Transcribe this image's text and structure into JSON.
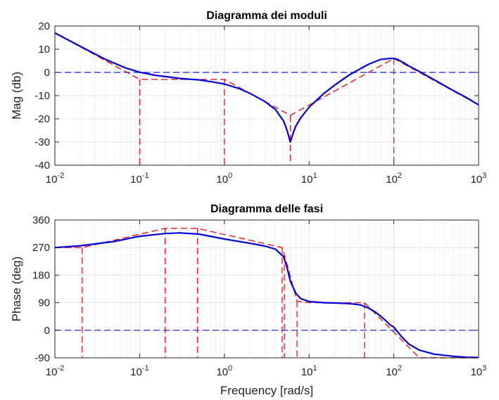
{
  "chart_data": [
    {
      "type": "line",
      "title": "Diagramma dei moduli",
      "xlabel": "",
      "ylabel": "Mag (db)",
      "xscale": "log",
      "xlim": [
        0.01,
        1000
      ],
      "ylim": [
        -40,
        20
      ],
      "x_tick_labels": [
        {
          "base": "10",
          "exp": "-2"
        },
        {
          "base": "10",
          "exp": "-1"
        },
        {
          "base": "10",
          "exp": "0"
        },
        {
          "base": "10",
          "exp": "1"
        },
        {
          "base": "10",
          "exp": "2"
        },
        {
          "base": "10",
          "exp": "3"
        }
      ],
      "y_ticks": [
        20,
        10,
        0,
        -10,
        -20,
        -30,
        -40
      ],
      "grid": true,
      "colors": {
        "exact": "#0000dd",
        "asymptotic": "#e8141e",
        "zero_line": "#1a1acc"
      },
      "series": [
        {
          "style": "solid",
          "x": [
            0.01,
            0.02,
            0.04,
            0.07,
            0.1,
            0.15,
            0.2,
            0.3,
            0.5,
            0.7,
            1,
            1.5,
            2,
            3,
            4,
            5,
            5.5,
            6,
            6.5,
            7,
            8,
            10,
            15,
            20,
            30,
            50,
            70,
            90,
            100,
            110,
            130,
            150,
            200,
            300,
            500,
            700,
            1000
          ],
          "y": [
            17,
            11.2,
            5.5,
            1.8,
            0.1,
            -1.2,
            -1.8,
            -2.6,
            -3.2,
            -4,
            -5,
            -7,
            -9,
            -12.5,
            -16,
            -21,
            -25,
            -30,
            -26,
            -23,
            -19.5,
            -15,
            -9,
            -5.5,
            -1,
            3.5,
            5.6,
            6,
            6,
            5.6,
            4.2,
            2.8,
            0.4,
            -3.2,
            -7.8,
            -10.6,
            -14
          ]
        },
        {
          "style": "dashed",
          "x": [
            0.01,
            0.1,
            1,
            6,
            100,
            1000
          ],
          "y": [
            17,
            -3,
            -3,
            -18.5,
            6,
            -14
          ]
        }
      ],
      "asymptote_drops": [
        0.1,
        1,
        6,
        100
      ],
      "reference_line": {
        "y": 0
      }
    },
    {
      "type": "line",
      "title": "Diagramma delle fasi",
      "xlabel": "Frequency [rad/s]",
      "ylabel": "Phase (deg)",
      "xscale": "log",
      "xlim": [
        0.01,
        1000
      ],
      "ylim": [
        -90,
        360
      ],
      "x_tick_labels": [
        {
          "base": "10",
          "exp": "-2"
        },
        {
          "base": "10",
          "exp": "-1"
        },
        {
          "base": "10",
          "exp": "0"
        },
        {
          "base": "10",
          "exp": "1"
        },
        {
          "base": "10",
          "exp": "2"
        },
        {
          "base": "10",
          "exp": "3"
        }
      ],
      "y_ticks": [
        360,
        270,
        180,
        90,
        0,
        -90
      ],
      "grid": true,
      "colors": {
        "exact": "#0000dd",
        "asymptotic": "#e8141e",
        "zero_line": "#1a1acc"
      },
      "series": [
        {
          "style": "solid",
          "x": [
            0.01,
            0.02,
            0.05,
            0.1,
            0.2,
            0.3,
            0.5,
            1,
            2,
            3,
            4,
            5,
            5.5,
            6,
            7,
            8,
            10,
            15,
            20,
            30,
            40,
            50,
            60,
            70,
            80,
            90,
            100,
            120,
            150,
            200,
            300,
            500,
            700,
            1000
          ],
          "y": [
            270,
            276,
            290,
            307,
            316,
            318,
            314,
            298,
            284,
            275,
            265,
            240,
            205,
            160,
            120,
            103,
            94,
            90,
            89,
            87,
            83,
            73,
            60,
            46,
            32,
            18,
            10,
            -17,
            -45,
            -65,
            -78,
            -85,
            -88,
            -89
          ]
        },
        {
          "style": "dashed",
          "x": [
            0.01,
            0.021,
            0.2,
            0.48,
            4.8,
            5.1,
            7.2,
            10,
            45,
            200,
            1000
          ],
          "y": [
            270,
            270,
            333,
            333,
            270,
            247,
            95,
            90,
            90,
            -90,
            -90
          ]
        }
      ],
      "asymptote_drops": [
        0.021,
        0.2,
        0.48,
        4.8,
        5.1,
        7.2,
        45
      ],
      "reference_line": {
        "y": 0
      }
    }
  ]
}
